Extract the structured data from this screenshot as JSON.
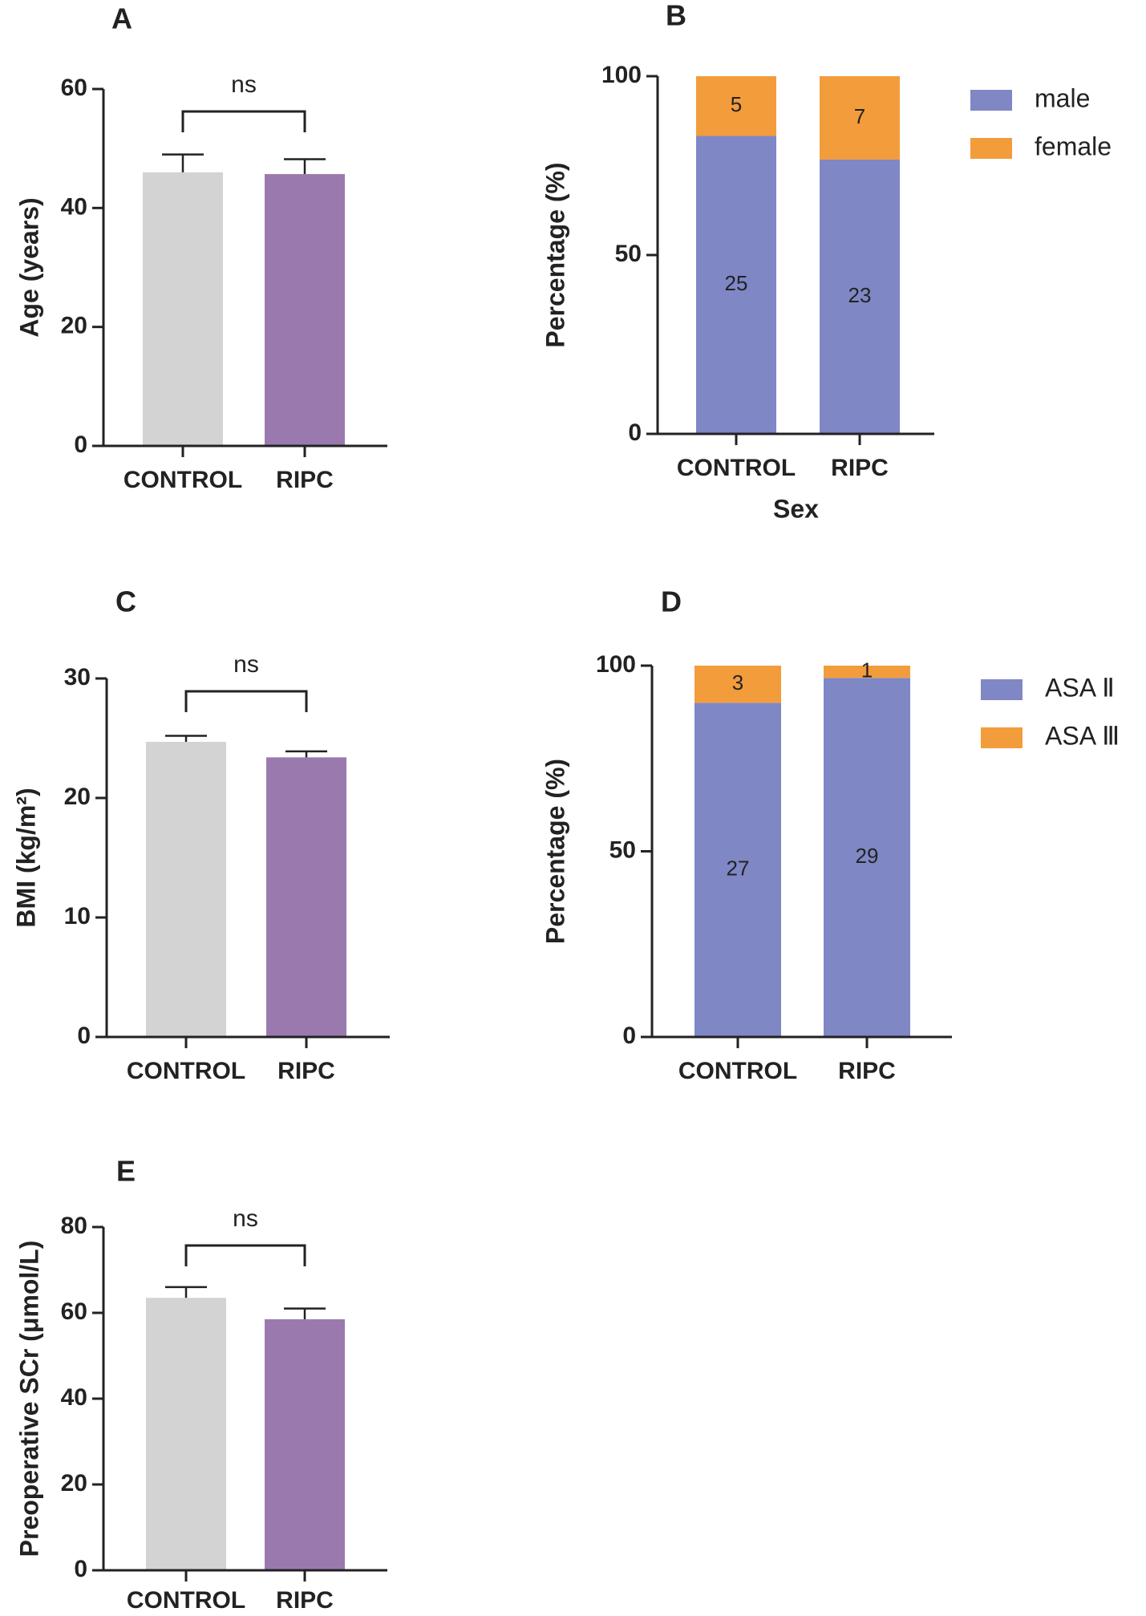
{
  "chart_data": [
    {
      "type": "bar",
      "panel": "A",
      "ylabel": "Age (years)",
      "categories": [
        "CONTROL",
        "RIPC"
      ],
      "values": [
        46,
        45.7
      ],
      "errors": [
        3,
        2.5
      ],
      "colors": [
        "#d3d3d3",
        "#9a7aae"
      ],
      "ylim": [
        0,
        60
      ],
      "yticks": [
        0,
        20,
        40,
        60
      ],
      "annotation": "ns"
    },
    {
      "type": "stacked_bar",
      "panel": "B",
      "ylabel": "Percentage (%)",
      "xlabel": "Sex",
      "categories": [
        "CONTROL",
        "RIPC"
      ],
      "series": [
        {
          "name": "male",
          "color": "#7f87c5",
          "values": [
            83.3,
            76.7
          ],
          "counts": [
            25,
            23
          ]
        },
        {
          "name": "female",
          "color": "#f39c3c",
          "values": [
            16.7,
            23.3
          ],
          "counts": [
            5,
            7
          ]
        }
      ],
      "ylim": [
        0,
        100
      ],
      "yticks": [
        0,
        50,
        100
      ]
    },
    {
      "type": "bar",
      "panel": "C",
      "ylabel": "BMI (kg/m²)",
      "categories": [
        "CONTROL",
        "RIPC"
      ],
      "values": [
        24.7,
        23.4
      ],
      "errors": [
        0.5,
        0.5
      ],
      "colors": [
        "#d3d3d3",
        "#9a7aae"
      ],
      "ylim": [
        0,
        30
      ],
      "yticks": [
        0,
        10,
        20,
        30
      ],
      "annotation": "ns"
    },
    {
      "type": "stacked_bar",
      "panel": "D",
      "ylabel": "Percentage (%)",
      "categories": [
        "CONTROL",
        "RIPC"
      ],
      "series": [
        {
          "name": "ASA Ⅱ",
          "color": "#7f87c5",
          "values": [
            90,
            96.7
          ],
          "counts": [
            27,
            29
          ]
        },
        {
          "name": "ASA Ⅲ",
          "color": "#f39c3c",
          "values": [
            10,
            3.3
          ],
          "counts": [
            3,
            1
          ]
        }
      ],
      "ylim": [
        0,
        100
      ],
      "yticks": [
        0,
        50,
        100
      ]
    },
    {
      "type": "bar",
      "panel": "E",
      "ylabel": "Preoperative SCr (μmol/L)",
      "categories": [
        "CONTROL",
        "RIPC"
      ],
      "values": [
        63.5,
        58.5
      ],
      "errors": [
        2.5,
        2.5
      ],
      "colors": [
        "#d3d3d3",
        "#9a7aae"
      ],
      "ylim": [
        0,
        80
      ],
      "yticks": [
        0,
        20,
        40,
        60,
        80
      ],
      "annotation": "ns"
    }
  ]
}
